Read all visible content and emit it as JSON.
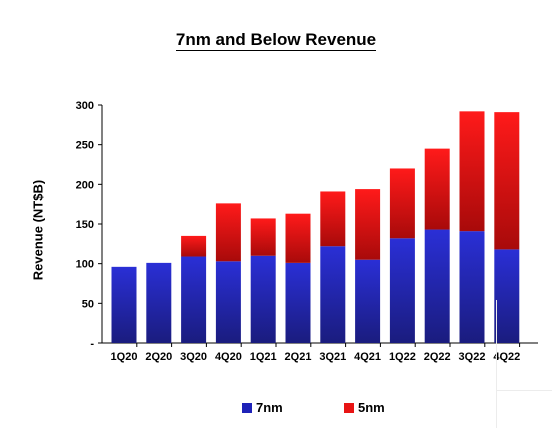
{
  "chart_data": {
    "type": "bar",
    "stacked": true,
    "title": "7nm and Below Revenue",
    "xlabel": "",
    "ylabel": "Revenue (NT$B)",
    "categories": [
      "1Q20",
      "2Q20",
      "3Q20",
      "4Q20",
      "1Q21",
      "2Q21",
      "3Q21",
      "4Q21",
      "1Q22",
      "2Q22",
      "3Q22",
      "4Q22"
    ],
    "series": [
      {
        "name": "7nm",
        "color": "#1e22b8",
        "values": [
          96,
          101,
          109,
          103,
          110,
          101,
          122,
          105,
          132,
          143,
          141,
          118
        ]
      },
      {
        "name": "5nm",
        "color": "#e81414",
        "values": [
          0,
          0,
          26,
          73,
          47,
          62,
          69,
          89,
          88,
          102,
          151,
          173
        ]
      }
    ],
    "ylim": [
      0,
      300
    ],
    "yticks": [
      0,
      50,
      100,
      150,
      200,
      250,
      300
    ],
    "ytick_labels": [
      "-",
      "50",
      "100",
      "150",
      "200",
      "250",
      "300"
    ],
    "grid": false,
    "legend_position": "bottom-center"
  }
}
